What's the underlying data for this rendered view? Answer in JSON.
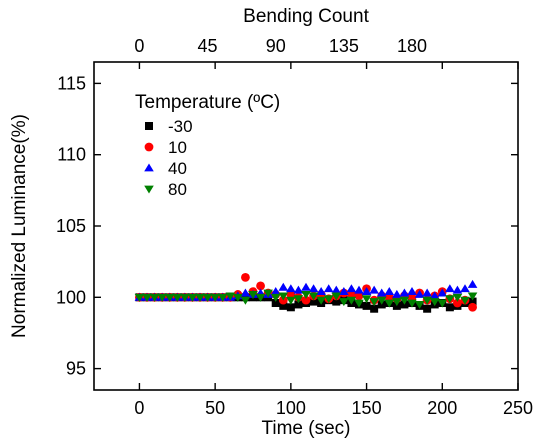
{
  "chart_data": {
    "type": "scatter",
    "xlabel": "Time (sec)",
    "ylabel": "Normalized Luminance(%)",
    "x2label": "Bending Count",
    "xlim": [
      -30,
      250
    ],
    "ylim": [
      93.5,
      116.5
    ],
    "x_ticks": [
      "0",
      "50",
      "100",
      "150",
      "200",
      "250"
    ],
    "y_ticks": [
      "95",
      "100",
      "105",
      "110",
      "115"
    ],
    "x2_ticks": [
      "0",
      "45",
      "90",
      "135",
      "180"
    ],
    "x2_tick_positions_data": [
      0,
      45,
      90,
      135,
      180
    ],
    "x2_scale_note": "",
    "legend_title": "Temperature  (ºC)",
    "legend_position": "top-left",
    "grid": false,
    "series": [
      {
        "name": "-30",
        "marker": "square",
        "color": "#000000",
        "x": [
          0,
          5,
          10,
          15,
          20,
          25,
          30,
          35,
          40,
          45,
          50,
          55,
          60,
          65,
          70,
          75,
          80,
          85,
          90,
          95,
          100,
          105,
          110,
          115,
          120,
          125,
          130,
          135,
          140,
          145,
          150,
          155,
          160,
          165,
          170,
          175,
          180,
          185,
          190,
          195,
          200,
          205,
          210,
          215,
          220
        ],
        "y": [
          100,
          100,
          100,
          100,
          100,
          100,
          100,
          100,
          100,
          100,
          100,
          100,
          100,
          100,
          100,
          100,
          100,
          100,
          99.6,
          99.4,
          99.3,
          99.5,
          99.6,
          99.7,
          99.6,
          99.8,
          99.7,
          99.8,
          99.6,
          99.5,
          99.4,
          99.2,
          99.5,
          99.6,
          99.4,
          99.5,
          99.6,
          99.4,
          99.2,
          99.5,
          99.6,
          99.3,
          99.4,
          99.6,
          99.7
        ]
      },
      {
        "name": "10",
        "marker": "circle",
        "color": "#ff0000",
        "x": [
          0,
          5,
          10,
          15,
          20,
          25,
          30,
          35,
          40,
          45,
          50,
          55,
          60,
          65,
          70,
          75,
          80,
          85,
          90,
          95,
          100,
          105,
          110,
          115,
          120,
          125,
          130,
          135,
          140,
          145,
          150,
          155,
          160,
          165,
          170,
          175,
          180,
          185,
          190,
          195,
          200,
          205,
          210,
          215,
          220
        ],
        "y": [
          100,
          100,
          100,
          100,
          100,
          100,
          100,
          100,
          100,
          100,
          100,
          100,
          100,
          100.2,
          101.4,
          100.4,
          100.8,
          100.3,
          100.2,
          99.8,
          100.2,
          100.0,
          99.8,
          100.1,
          100.2,
          99.9,
          100.1,
          100.3,
          100.2,
          100.1,
          100.6,
          99.8,
          100.1,
          100.0,
          99.9,
          100.1,
          100.0,
          100.3,
          99.8,
          100.1,
          100.4,
          99.9,
          99.6,
          99.8,
          99.3
        ]
      },
      {
        "name": "40",
        "marker": "triangle-up",
        "color": "#0000ff",
        "x": [
          0,
          5,
          10,
          15,
          20,
          25,
          30,
          35,
          40,
          45,
          50,
          55,
          60,
          65,
          70,
          75,
          80,
          85,
          90,
          95,
          100,
          105,
          110,
          115,
          120,
          125,
          130,
          135,
          140,
          145,
          150,
          155,
          160,
          165,
          170,
          175,
          180,
          185,
          190,
          195,
          200,
          205,
          210,
          215,
          220
        ],
        "y": [
          100,
          100,
          100,
          100,
          100,
          100,
          100,
          100,
          100,
          100,
          100,
          100,
          100,
          100.1,
          100.3,
          100.2,
          100.3,
          100.2,
          100.4,
          100.7,
          100.6,
          100.5,
          100.7,
          100.6,
          100.4,
          100.6,
          100.5,
          100.4,
          100.6,
          100.5,
          100.4,
          100.5,
          100.3,
          100.4,
          100.2,
          100.3,
          100.4,
          100.2,
          100.3,
          100.1,
          100.3,
          100.6,
          100.5,
          100.6,
          100.9
        ]
      },
      {
        "name": "80",
        "marker": "triangle-down",
        "color": "#008000",
        "x": [
          0,
          5,
          10,
          15,
          20,
          25,
          30,
          35,
          40,
          45,
          50,
          55,
          60,
          65,
          70,
          75,
          80,
          85,
          90,
          95,
          100,
          105,
          110,
          115,
          120,
          125,
          130,
          135,
          140,
          145,
          150,
          155,
          160,
          165,
          170,
          175,
          180,
          185,
          190,
          195,
          200,
          205,
          210,
          215,
          220
        ],
        "y": [
          100,
          100,
          100,
          100,
          100,
          100,
          100,
          100,
          100,
          100,
          100,
          100,
          100.1,
          100.0,
          99.8,
          100.2,
          100.0,
          100.3,
          100.0,
          100.1,
          99.8,
          99.9,
          100.2,
          100.1,
          99.8,
          99.9,
          100.1,
          99.7,
          99.8,
          99.6,
          99.9,
          99.7,
          99.8,
          99.6,
          99.7,
          99.8,
          99.6,
          99.5,
          99.8,
          99.7,
          99.6,
          99.9,
          100.0,
          99.8,
          100.1
        ]
      }
    ]
  }
}
